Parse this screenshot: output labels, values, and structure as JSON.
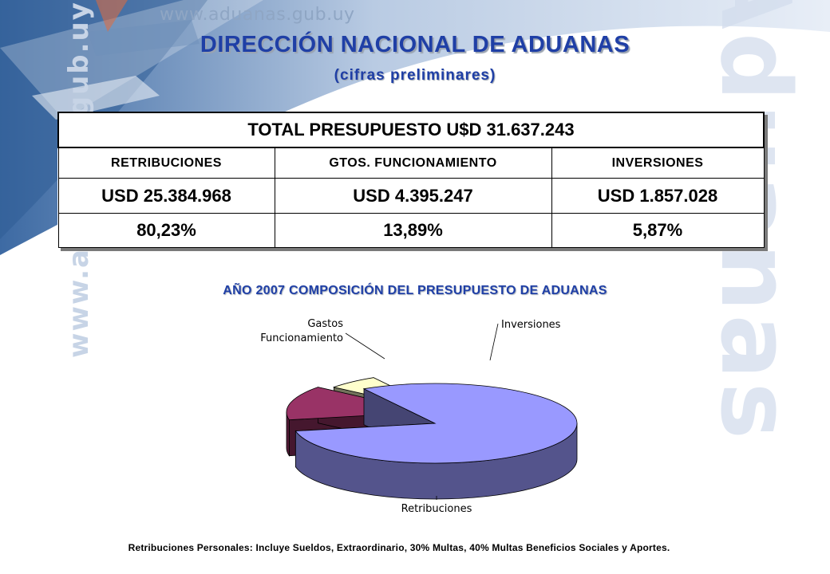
{
  "header": {
    "site_url": "www.aduanas.gub.uy",
    "side_text": "www.aduanas.gub.uy",
    "watermark": "Aduanas"
  },
  "title": "DIRECCIÓN  NACIONAL  DE  ADUANAS",
  "subtitle": "(cifras preliminares)",
  "table": {
    "total": "TOTAL PRESUPUESTO U$D 31.637.243",
    "headers": [
      "RETRIBUCIONES",
      "GTOS.  FUNCIONAMIENTO",
      "INVERSIONES"
    ],
    "amounts": [
      "USD 25.384.968",
      "USD 4.395.247",
      "USD 1.857.028"
    ],
    "percentages": [
      "80,23%",
      "13,89%",
      "5,87%"
    ]
  },
  "chart_title": "AÑO 2007 COMPOSICIÓN  DEL PRESUPUESTO DE ADUANAS",
  "chart_data": {
    "type": "pie",
    "title": "AÑO 2007 COMPOSICIÓN  DEL PRESUPUESTO DE ADUANAS",
    "labels": [
      "Retribuciones",
      "Gastos Funcionamiento",
      "Inversiones"
    ],
    "values": [
      80.23,
      13.89,
      5.87
    ],
    "colors": [
      "#9999ff",
      "#993366",
      "#ffffcc"
    ],
    "label_lines": [
      [
        "Retribuciones"
      ],
      [
        "Gastos",
        "Funcionamiento"
      ],
      [
        "Inversiones"
      ]
    ]
  },
  "footnote": "Retribuciones Personales: Incluye Sueldos, Extraordinario, 30% Multas, 40% Multas Beneficios Sociales y Aportes."
}
